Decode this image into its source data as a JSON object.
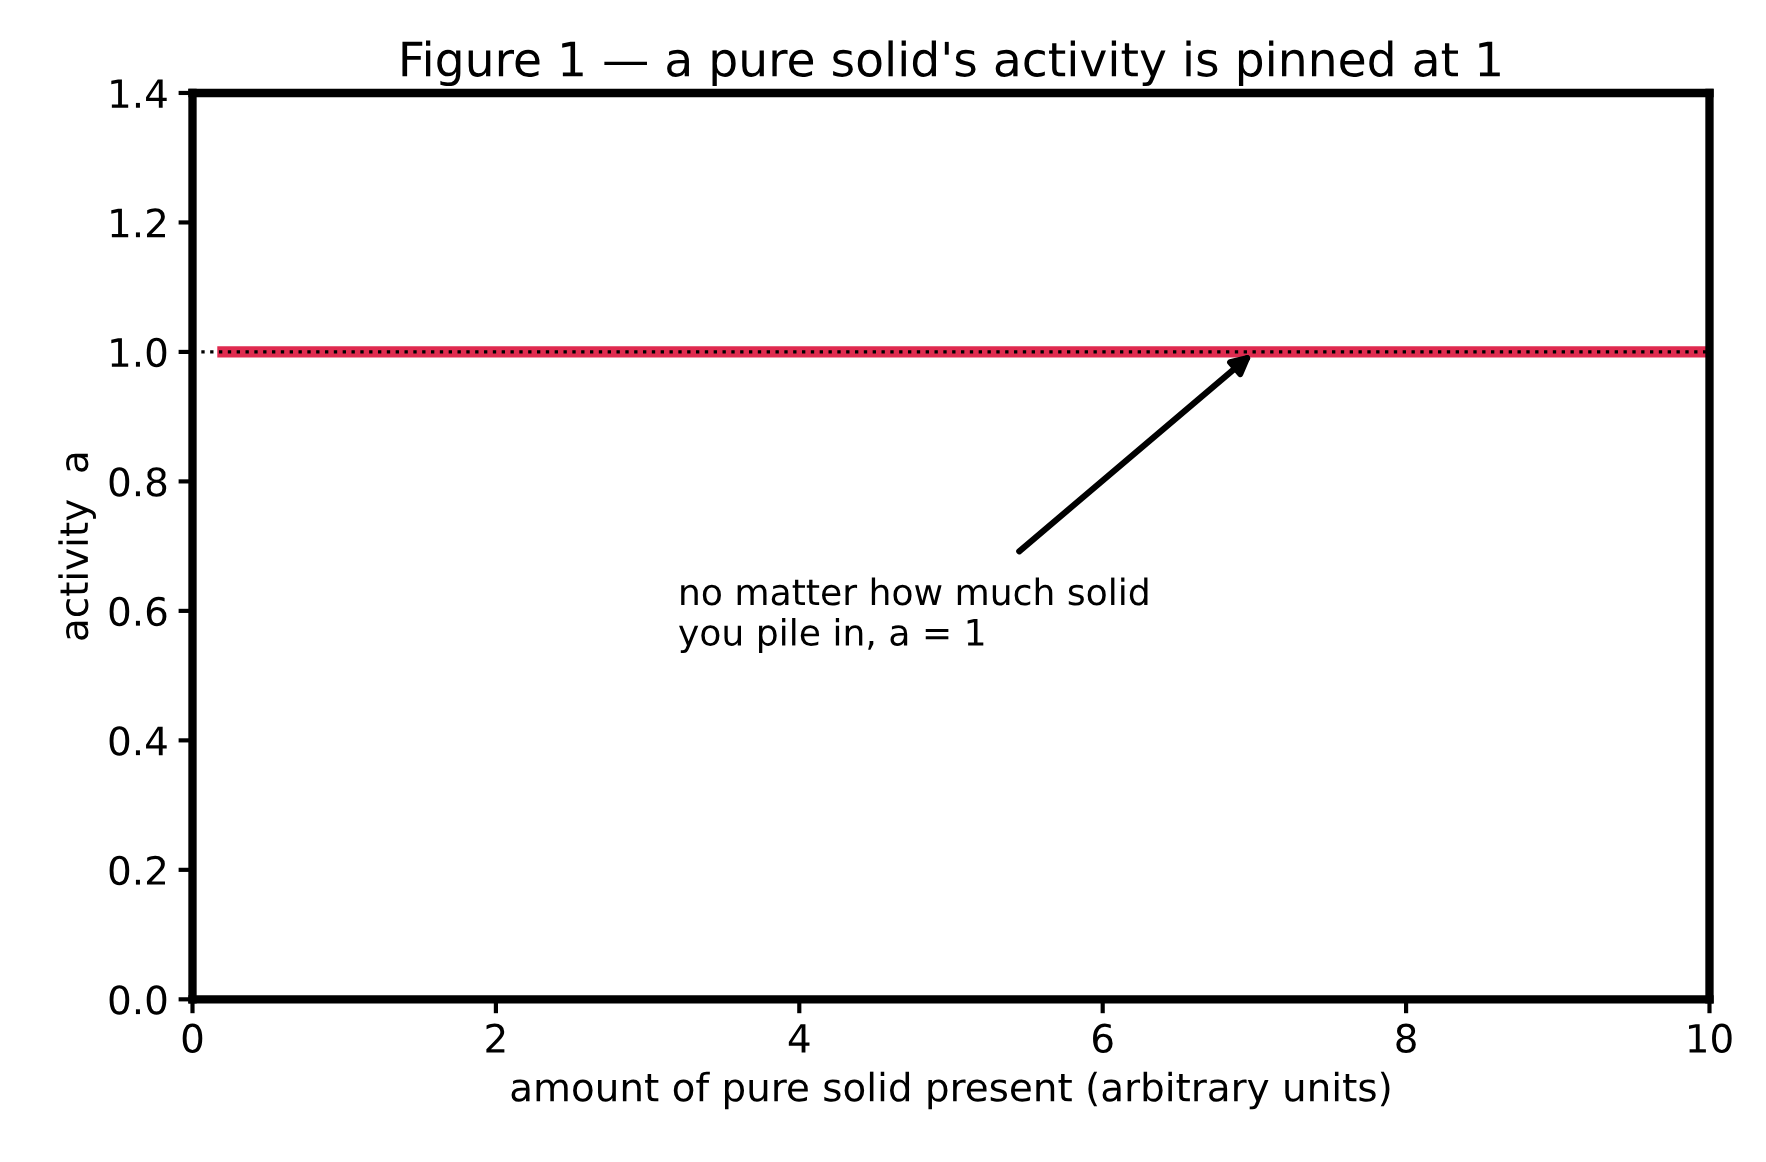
{
  "chart_data": {
    "type": "line",
    "title": "Figure 1 — a pure solid's activity is pinned at 1",
    "xlabel": "amount of pure solid present (arbitrary units)",
    "ylabel": "activity  a",
    "x": [
      0.2,
      10
    ],
    "series": [
      {
        "color": "#dc143c",
        "values": [
          1,
          1
        ]
      }
    ],
    "ref_lines": [
      {
        "axis": "y",
        "value": 1,
        "color": "#000000",
        "line_style": "dotted"
      }
    ],
    "annotations": [
      {
        "text": "no matter how much solid\nyou pile in, a = 1",
        "x": 7,
        "y": 1
      }
    ],
    "xlim": [
      0,
      10
    ],
    "xticks": [
      0,
      2,
      4,
      6,
      8,
      10
    ],
    "ylim": [
      0,
      1.4
    ],
    "yticks": [
      {
        "value": 0,
        "label": "0.0"
      },
      {
        "value": 0.2,
        "label": "0.2"
      },
      {
        "value": 0.4,
        "label": "0.4"
      },
      {
        "value": 0.6,
        "label": "0.6"
      },
      {
        "value": 0.8,
        "label": "0.8"
      },
      {
        "value": 1,
        "label": "1.0"
      },
      {
        "value": 1.2,
        "label": "1.2"
      },
      {
        "value": 1.4,
        "label": "1.4"
      }
    ],
    "grid": false,
    "legend": false,
    "marker": "none",
    "line_style": "solid"
  }
}
